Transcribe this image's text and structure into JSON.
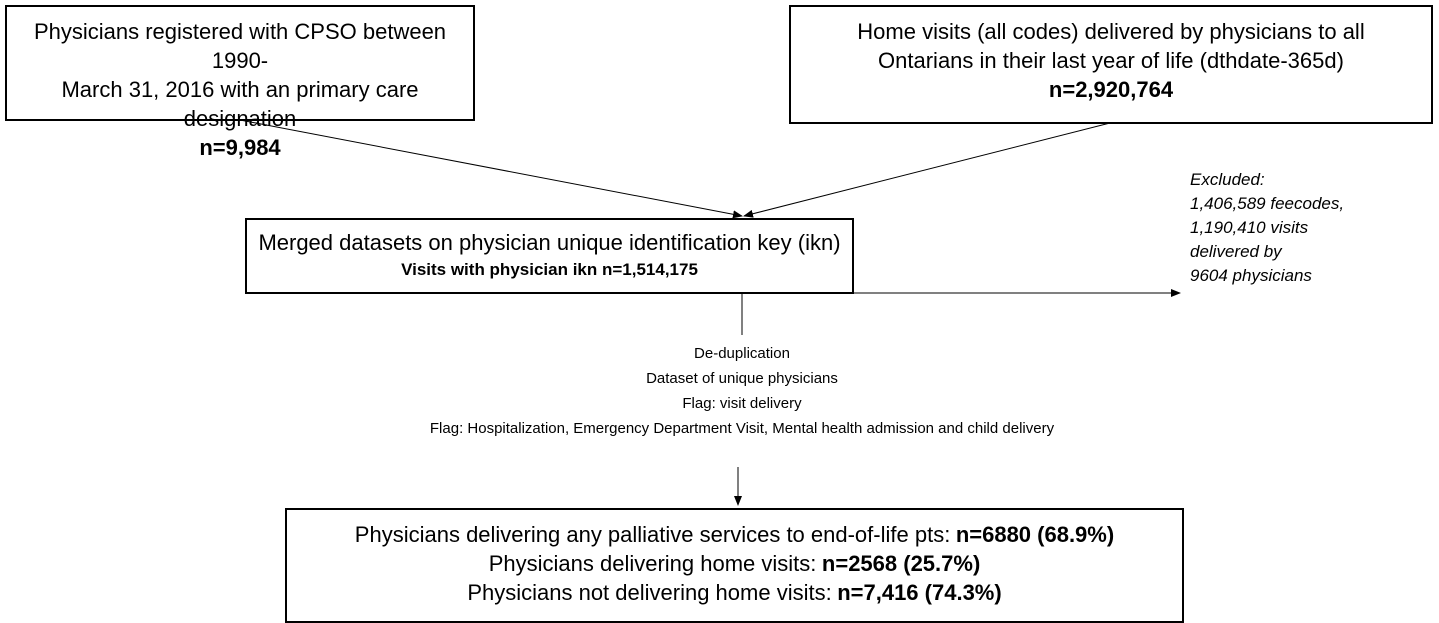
{
  "boxes": [
    {
      "lines": [
        "Physicians registered with CPSO between 1990-",
        "March 31, 2016 with an primary care designation"
      ],
      "count": "n=9,984"
    },
    {
      "lines": [
        "Home visits (all codes) delivered by physicians to all",
        "Ontarians in their last year of life (dthdate-365d)"
      ],
      "count": "n=2,920,764"
    }
  ],
  "merged": {
    "title": "Merged datasets on physician unique identification key (ikn)",
    "visits": "Visits with physician ikn n=1,514,175"
  },
  "excluded": [
    "Excluded:",
    "1,406,589 feecodes,",
    "1,190,410 visits",
    "delivered by",
    "9604 physicians"
  ],
  "steps": [
    "De-duplication",
    "Dataset of unique physicians",
    "Flag: visit delivery",
    "Flag: Hospitalization, Emergency Department Visit, Mental health admission and child delivery"
  ],
  "results": [
    {
      "label": "Physicians delivering any palliative services to end-of-life pts:",
      "value": "n=6880 (68.9%)"
    },
    {
      "label": "Physicians delivering home visits:",
      "value": "n=2568 (25.7%)"
    },
    {
      "label": "Physicians not delivering home visits:",
      "value": "n=7,416 (74.3%)"
    }
  ]
}
